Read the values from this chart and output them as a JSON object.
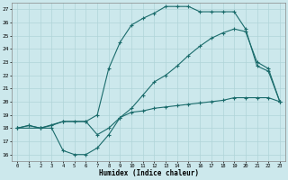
{
  "bg_color": "#cce8ec",
  "grid_color": "#b0d4d8",
  "line_color": "#1a6b6b",
  "line_width": 0.8,
  "marker": "+",
  "marker_size": 3,
  "marker_edge_width": 0.8,
  "xlim": [
    -0.5,
    23.5
  ],
  "ylim": [
    15.5,
    27.5
  ],
  "xticks": [
    0,
    1,
    2,
    3,
    4,
    5,
    6,
    7,
    8,
    9,
    10,
    11,
    12,
    13,
    14,
    15,
    16,
    17,
    18,
    19,
    20,
    21,
    22,
    23
  ],
  "yticks": [
    16,
    17,
    18,
    19,
    20,
    21,
    22,
    23,
    24,
    25,
    26,
    27
  ],
  "xlabel": "Humidex (Indice chaleur)",
  "curve1_x": [
    0,
    1,
    2,
    3,
    4,
    5,
    6,
    7,
    8,
    9,
    10,
    11,
    12,
    13,
    14,
    15,
    16,
    17,
    18,
    19,
    20,
    21,
    22,
    23
  ],
  "curve1_y": [
    18,
    18.2,
    18,
    18.2,
    18.5,
    18.5,
    18.5,
    19.0,
    22.5,
    24.5,
    25.8,
    26.3,
    26.7,
    27.2,
    27.2,
    27.2,
    26.8,
    26.8,
    26.8,
    26.8,
    25.5,
    22.7,
    22.3,
    20.0
  ],
  "curve2_x": [
    0,
    1,
    2,
    3,
    4,
    5,
    6,
    7,
    8,
    9,
    10,
    11,
    12,
    13,
    14,
    15,
    16,
    17,
    18,
    19,
    20,
    21,
    22,
    23
  ],
  "curve2_y": [
    18,
    18.2,
    18,
    18,
    16.3,
    16.0,
    16.0,
    16.5,
    17.5,
    18.8,
    19.2,
    19.3,
    19.5,
    19.6,
    19.7,
    19.8,
    19.9,
    20.0,
    20.1,
    20.3,
    20.3,
    20.3,
    20.3,
    20.0
  ],
  "curve3_x": [
    0,
    2,
    4,
    6,
    7,
    8,
    9,
    10,
    11,
    12,
    13,
    14,
    15,
    16,
    17,
    18,
    19,
    20,
    21,
    22,
    23
  ],
  "curve3_y": [
    18,
    18,
    18.5,
    18.5,
    17.5,
    18.0,
    18.8,
    19.5,
    20.5,
    21.5,
    22.0,
    22.7,
    23.5,
    24.2,
    24.8,
    25.2,
    25.5,
    25.3,
    23.0,
    22.5,
    20.0
  ]
}
